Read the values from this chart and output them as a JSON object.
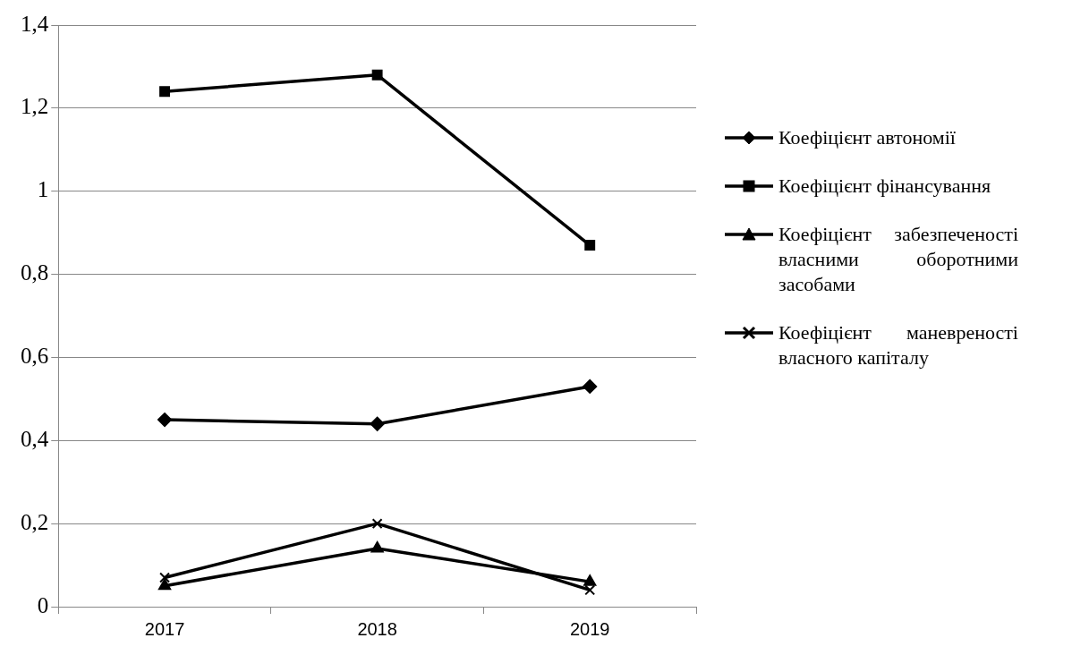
{
  "chart_data": {
    "type": "line",
    "categories": [
      "2017",
      "2018",
      "2019"
    ],
    "series": [
      {
        "name": "Коефіцієнт автономії",
        "color": "#000000",
        "marker": "diamond",
        "values": [
          0.45,
          0.44,
          0.53
        ]
      },
      {
        "name": "Коефіцієнт фінансування",
        "color": "#000000",
        "marker": "square",
        "values": [
          1.24,
          1.28,
          0.87
        ]
      },
      {
        "name": "Коефіцієнт забезпеченості власними оборотними засобами",
        "color": "#000000",
        "marker": "triangle",
        "values": [
          0.05,
          0.14,
          0.06
        ]
      },
      {
        "name": "Коефіцієнт маневреності власного капіталу",
        "color": "#000000",
        "marker": "cross",
        "values": [
          0.07,
          0.2,
          0.04
        ]
      }
    ],
    "ylim": [
      0,
      1.4
    ],
    "yticks": [
      {
        "value": 0,
        "label": "0"
      },
      {
        "value": 0.2,
        "label": "0,2"
      },
      {
        "value": 0.4,
        "label": "0,4"
      },
      {
        "value": 0.6,
        "label": "0,6"
      },
      {
        "value": 0.8,
        "label": "0,8"
      },
      {
        "value": 1,
        "label": "1"
      },
      {
        "value": 1.2,
        "label": "1,2"
      },
      {
        "value": 1.4,
        "label": "1,4"
      }
    ],
    "grid": "y",
    "legend": "right",
    "line_style": "solid"
  }
}
